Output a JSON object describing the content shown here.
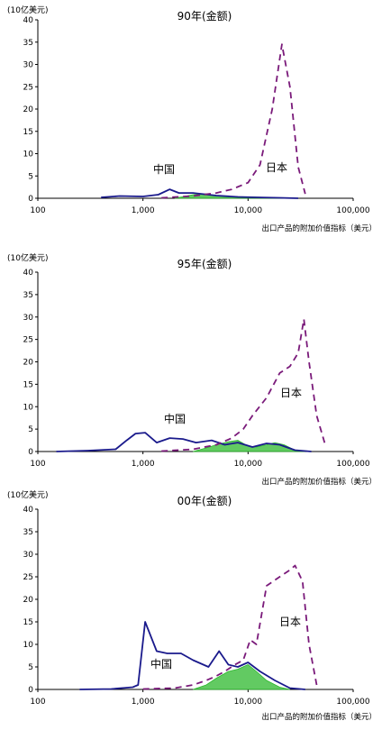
{
  "chart_data": [
    {
      "type": "area",
      "title": "90年(金额)",
      "unit_label": "(10亿美元)",
      "xlabel": "出口产品的附加价值指标（美元）",
      "xscale": "log",
      "xlim": [
        100,
        100000
      ],
      "ylim": [
        0,
        40
      ],
      "yticks": [
        0,
        5,
        10,
        15,
        20,
        25,
        30,
        35,
        40
      ],
      "xtick_labels": [
        "100",
        "1,000",
        "10,000",
        "100,000"
      ],
      "annotations": [
        "中国",
        "日本"
      ],
      "series": [
        {
          "name": "中国",
          "style": "solid",
          "color": "#1a1a8c",
          "x": [
            400,
            600,
            1000,
            1400,
            1800,
            2200,
            3000,
            5000,
            8000,
            12000,
            20000,
            30000
          ],
          "y": [
            0.2,
            0.5,
            0.4,
            0.8,
            2.0,
            1.2,
            1.2,
            0.6,
            0.3,
            0.2,
            0.1,
            0
          ]
        },
        {
          "name": "日本",
          "style": "dashed",
          "color": "#7a1a7a",
          "x": [
            1500,
            3000,
            5000,
            7000,
            10000,
            13000,
            17000,
            21000,
            25000,
            30000,
            35000
          ],
          "y": [
            0.1,
            0.5,
            1.2,
            2.0,
            3.5,
            7.5,
            20.0,
            34.5,
            25.0,
            7.0,
            1.0
          ]
        },
        {
          "name": "",
          "style": "fill",
          "color": "#2db82d",
          "x": [
            2000,
            3000,
            4000,
            5000,
            7000,
            10000,
            15000,
            20000,
            25000
          ],
          "y": [
            0,
            0.8,
            1.0,
            0.6,
            0.4,
            0.3,
            0.2,
            0.1,
            0
          ]
        }
      ]
    },
    {
      "type": "area",
      "title": "95年(金额)",
      "unit_label": "(10亿美元)",
      "xlabel": "出口产品的附加价值指标（美元）",
      "xscale": "log",
      "xlim": [
        100,
        100000
      ],
      "ylim": [
        0,
        40
      ],
      "yticks": [
        0,
        5,
        10,
        15,
        20,
        25,
        30,
        35,
        40
      ],
      "xtick_labels": [
        "100",
        "1,000",
        "10,000",
        "100,000"
      ],
      "annotations": [
        "中国",
        "日本"
      ],
      "series": [
        {
          "name": "中国",
          "style": "solid",
          "color": "#1a1a8c",
          "x": [
            150,
            300,
            550,
            700,
            850,
            1050,
            1350,
            1800,
            2400,
            3200,
            4500,
            6000,
            8000,
            11000,
            15000,
            20000,
            28000,
            40000
          ],
          "y": [
            0,
            0.2,
            0.5,
            2.5,
            4.0,
            4.2,
            2.0,
            3.0,
            2.8,
            2.0,
            2.5,
            1.5,
            2.0,
            1.0,
            1.8,
            1.5,
            0.3,
            0
          ]
        },
        {
          "name": "日本",
          "style": "dashed",
          "color": "#7a1a7a",
          "x": [
            1500,
            3000,
            5000,
            7000,
            9000,
            11000,
            15000,
            20000,
            25000,
            30000,
            34000,
            38000,
            45000,
            55000
          ],
          "y": [
            0.1,
            0.5,
            1.5,
            3.0,
            5.0,
            8.0,
            12.0,
            17.5,
            19.0,
            22.0,
            29.5,
            20.0,
            8.0,
            1.0
          ]
        },
        {
          "name": "",
          "style": "fill",
          "color": "#2db82d",
          "x": [
            3000,
            4000,
            5000,
            6500,
            8000,
            10000,
            12000,
            15000,
            18000,
            22000,
            28000,
            35000
          ],
          "y": [
            0,
            0.8,
            1.5,
            2.2,
            2.5,
            1.2,
            1.0,
            1.5,
            2.0,
            1.5,
            0.3,
            0
          ]
        }
      ]
    },
    {
      "type": "area",
      "title": "00年(金额)",
      "unit_label": "(10亿美元)",
      "xlabel": "出口产品的附加价值指标（美元）",
      "xscale": "log",
      "xlim": [
        100,
        100000
      ],
      "ylim": [
        0,
        40
      ],
      "yticks": [
        0,
        5,
        10,
        15,
        20,
        25,
        30,
        35,
        40
      ],
      "xtick_labels": [
        "100",
        "1,000",
        "10,000",
        "100,000"
      ],
      "annotations": [
        "中国",
        "日本"
      ],
      "series": [
        {
          "name": "中国",
          "style": "solid",
          "color": "#1a1a8c",
          "x": [
            250,
            500,
            800,
            900,
            1050,
            1350,
            1700,
            2300,
            3000,
            4200,
            5300,
            6500,
            8000,
            10000,
            13000,
            18000,
            25000,
            35000
          ],
          "y": [
            0,
            0.1,
            0.5,
            1.0,
            15.0,
            8.5,
            8.0,
            8.0,
            6.5,
            5.0,
            8.5,
            5.5,
            5.0,
            6.0,
            4.0,
            2.0,
            0.3,
            0
          ]
        },
        {
          "name": "日本",
          "style": "dashed",
          "color": "#7a1a7a",
          "x": [
            1000,
            2000,
            3000,
            4000,
            5000,
            6000,
            7500,
            9000,
            10500,
            12000,
            15000,
            20000,
            25000,
            28000,
            33000,
            38000,
            45000
          ],
          "y": [
            0.1,
            0.3,
            1.0,
            2.0,
            3.0,
            4.0,
            5.5,
            6.5,
            11.0,
            10.0,
            23.0,
            25.0,
            26.5,
            27.5,
            24.0,
            10.0,
            1.0
          ]
        },
        {
          "name": "",
          "style": "fill",
          "color": "#2db82d",
          "x": [
            3000,
            4000,
            5000,
            6500,
            8000,
            10000,
            12000,
            15000,
            20000,
            25000
          ],
          "y": [
            0,
            1.0,
            2.5,
            4.0,
            4.5,
            5.5,
            4.0,
            2.0,
            0.5,
            0
          ]
        }
      ]
    }
  ]
}
